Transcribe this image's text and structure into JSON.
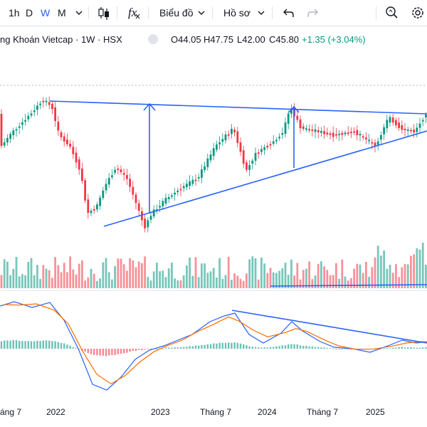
{
  "toolbar": {
    "intervals": [
      "1h",
      "D",
      "W",
      "M"
    ],
    "active_interval": "W",
    "chart_type_icon": "candles-icon",
    "indicators_icon": "fx-icon",
    "indicators_label": "fx",
    "chart_menu_label": "Biểu đồ",
    "profile_menu_label": "Hồ sơ",
    "undo_icon": "undo-icon",
    "redo_icon": "redo-icon",
    "search_icon": "search-settings-icon",
    "settings_icon": "gear-icon"
  },
  "legend": {
    "symbol": "ng Khoán Vietcap · 1W · HSX",
    "open": "O44.05",
    "high": "H47.75",
    "low": "L42.00",
    "close": "C45.80",
    "change": "+1.35 (+3.04%)",
    "up_color": "#089981"
  },
  "time_axis": [
    "áng 7",
    "2022",
    "2023",
    "Tháng 7",
    "2024",
    "Tháng 7",
    "2025"
  ],
  "colors": {
    "up": "#089981",
    "down": "#f23645",
    "trendline": "#2962ff",
    "macd": "#2962ff",
    "signal": "#ff6d00"
  }
}
